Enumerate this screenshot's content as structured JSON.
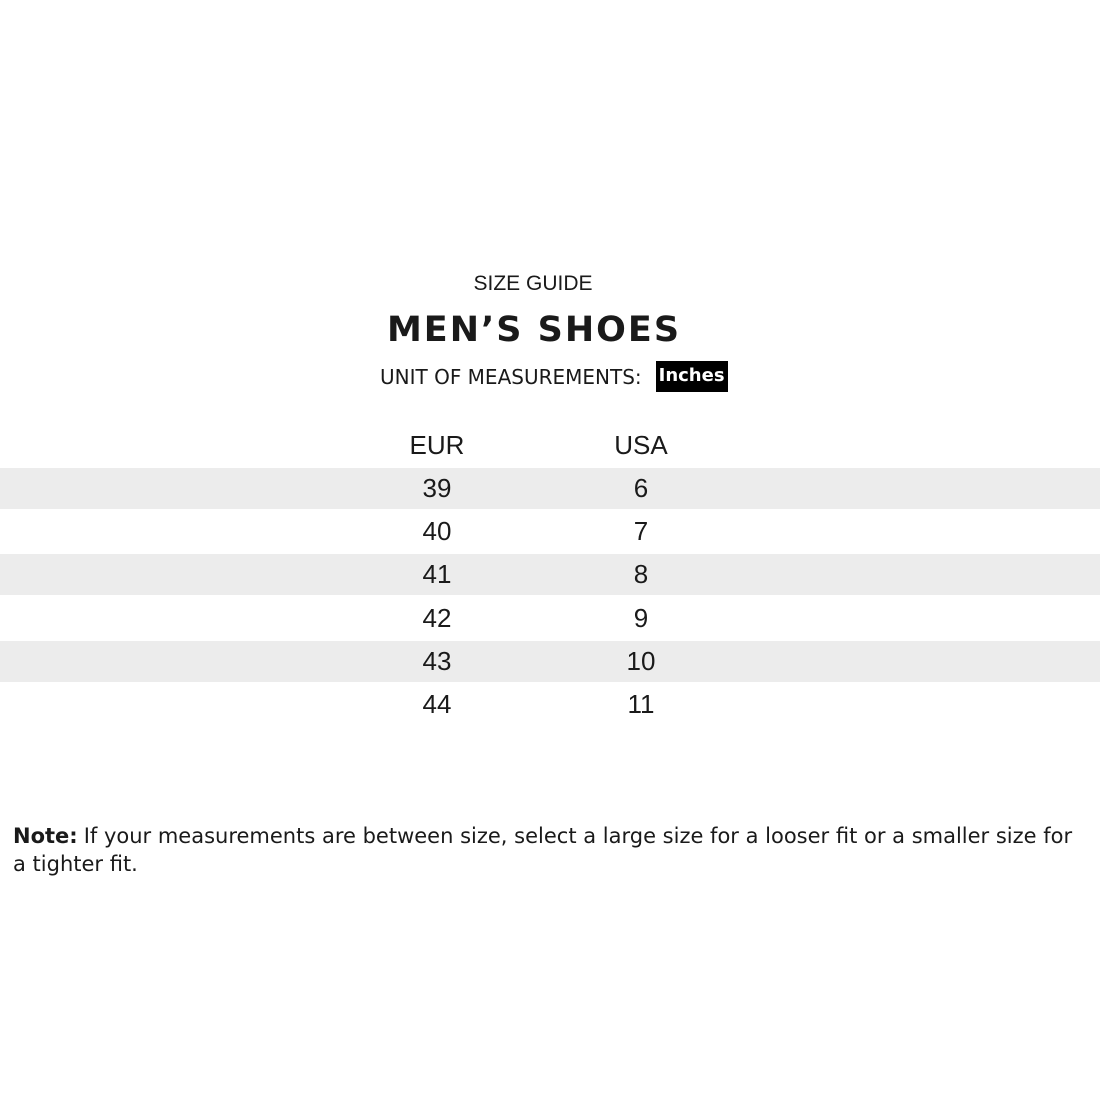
{
  "header": {
    "kicker": "SIZE GUIDE",
    "title": "MEN’S SHOES",
    "unit_label": "UNIT OF MEASUREMENTS:",
    "unit_value": "Inches"
  },
  "table": {
    "columns": [
      "EUR",
      "USA"
    ],
    "rows": [
      [
        39,
        6
      ],
      [
        40,
        7
      ],
      [
        41,
        8
      ],
      [
        42,
        9
      ],
      [
        43,
        10
      ],
      [
        44,
        11
      ]
    ]
  },
  "note": {
    "label": "Note:",
    "text": "If your measurements are between size, select a large size for a looser fit or a smaller size for a tighter fit."
  }
}
